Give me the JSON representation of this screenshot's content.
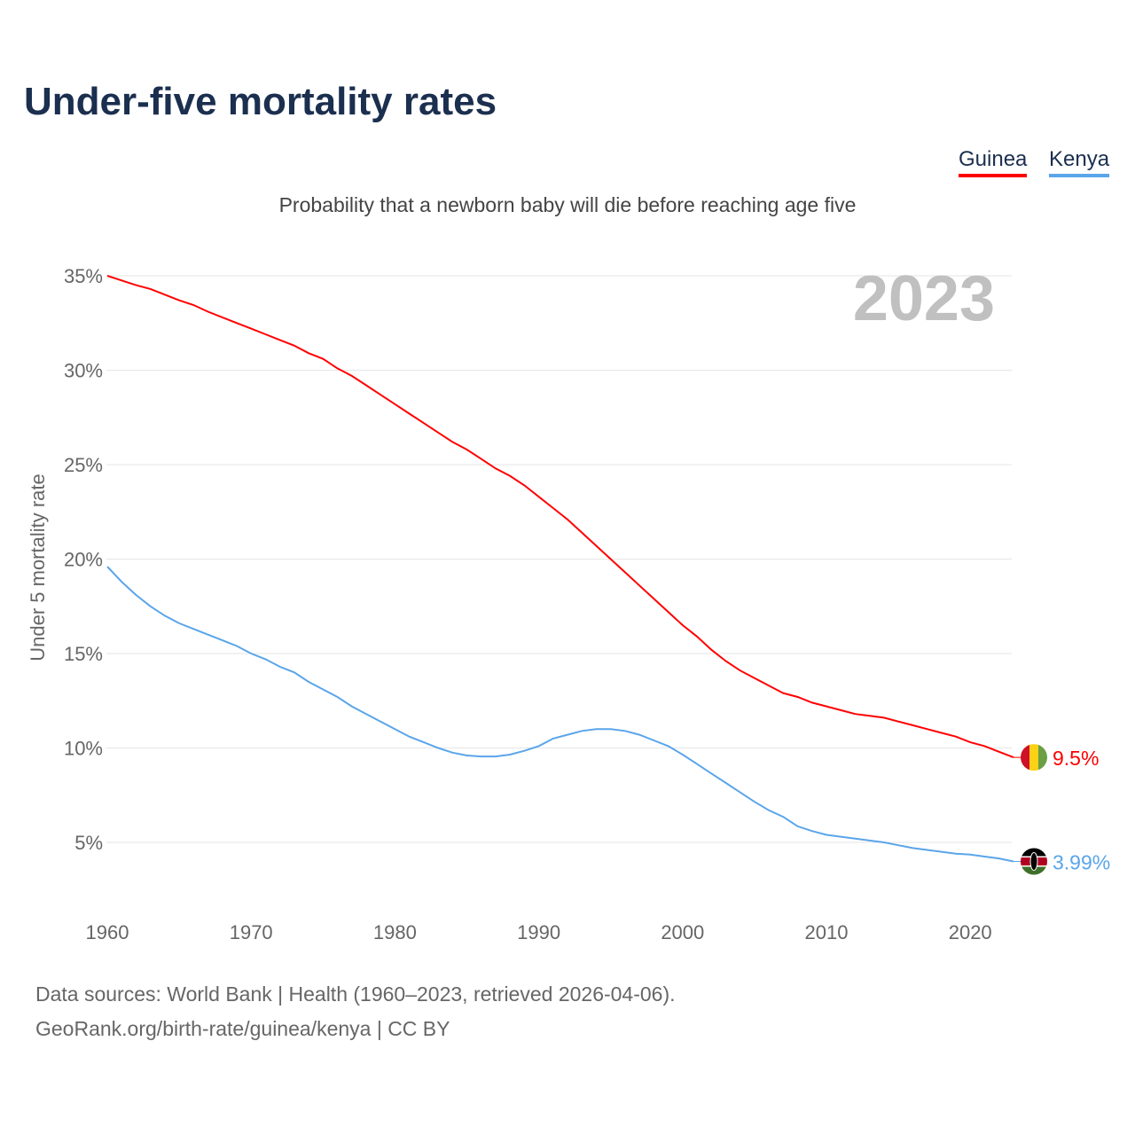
{
  "title": "Under-five mortality rates",
  "subtitle": "Probability that a newborn baby will die before reaching age five",
  "legend": [
    {
      "label": "Guinea",
      "color": "#ff0000"
    },
    {
      "label": "Kenya",
      "color": "#5aa5ea"
    }
  ],
  "year_overlay": "2023",
  "source_line1": "Data sources: World Bank | Health (1960–2023, retrieved 2026-04-06).",
  "source_line2": "GeoRank.org/birth-rate/guinea/kenya | CC BY",
  "chart_data": {
    "type": "line",
    "title": "Under-five mortality rates",
    "xlabel": "",
    "ylabel": "Under 5 mortality rate",
    "xlim": [
      1960,
      2023
    ],
    "ylim": [
      0,
      36
    ],
    "x_ticks": [
      1960,
      1970,
      1980,
      1990,
      2000,
      2010,
      2020
    ],
    "y_ticks": [
      5,
      10,
      15,
      20,
      25,
      30,
      35
    ],
    "y_tick_labels": [
      "5%",
      "10%",
      "15%",
      "20%",
      "25%",
      "30%",
      "35%"
    ],
    "grid": true,
    "x_start": 1960,
    "series": [
      {
        "name": "Guinea",
        "color": "#ff0000",
        "end_label": "9.5%",
        "flag": "guinea-flag",
        "values": [
          35.0,
          34.75,
          34.5,
          34.3,
          34.0,
          33.7,
          33.45,
          33.1,
          32.8,
          32.5,
          32.2,
          31.9,
          31.6,
          31.3,
          30.9,
          30.6,
          30.1,
          29.7,
          29.2,
          28.7,
          28.2,
          27.7,
          27.2,
          26.7,
          26.2,
          25.8,
          25.3,
          24.8,
          24.4,
          23.9,
          23.3,
          22.7,
          22.1,
          21.4,
          20.7,
          20.0,
          19.3,
          18.6,
          17.9,
          17.2,
          16.5,
          15.9,
          15.2,
          14.6,
          14.1,
          13.7,
          13.3,
          12.9,
          12.7,
          12.4,
          12.2,
          12.0,
          11.8,
          11.7,
          11.6,
          11.4,
          11.2,
          11.0,
          10.8,
          10.6,
          10.3,
          10.1,
          9.8,
          9.5
        ]
      },
      {
        "name": "Kenya",
        "color": "#5aa5ea",
        "end_label": "3.99%",
        "flag": "kenya-flag",
        "values": [
          19.6,
          18.8,
          18.1,
          17.5,
          17.0,
          16.6,
          16.3,
          16.0,
          15.7,
          15.4,
          15.0,
          14.7,
          14.3,
          14.0,
          13.5,
          13.1,
          12.7,
          12.2,
          11.8,
          11.4,
          11.0,
          10.6,
          10.3,
          10.0,
          9.75,
          9.6,
          9.55,
          9.55,
          9.65,
          9.85,
          10.1,
          10.5,
          10.7,
          10.9,
          11.0,
          11.0,
          10.9,
          10.7,
          10.4,
          10.1,
          9.65,
          9.15,
          8.65,
          8.15,
          7.65,
          7.15,
          6.7,
          6.35,
          5.85,
          5.6,
          5.4,
          5.3,
          5.2,
          5.1,
          5.0,
          4.85,
          4.7,
          4.6,
          4.5,
          4.4,
          4.35,
          4.25,
          4.15,
          3.99
        ]
      }
    ]
  }
}
